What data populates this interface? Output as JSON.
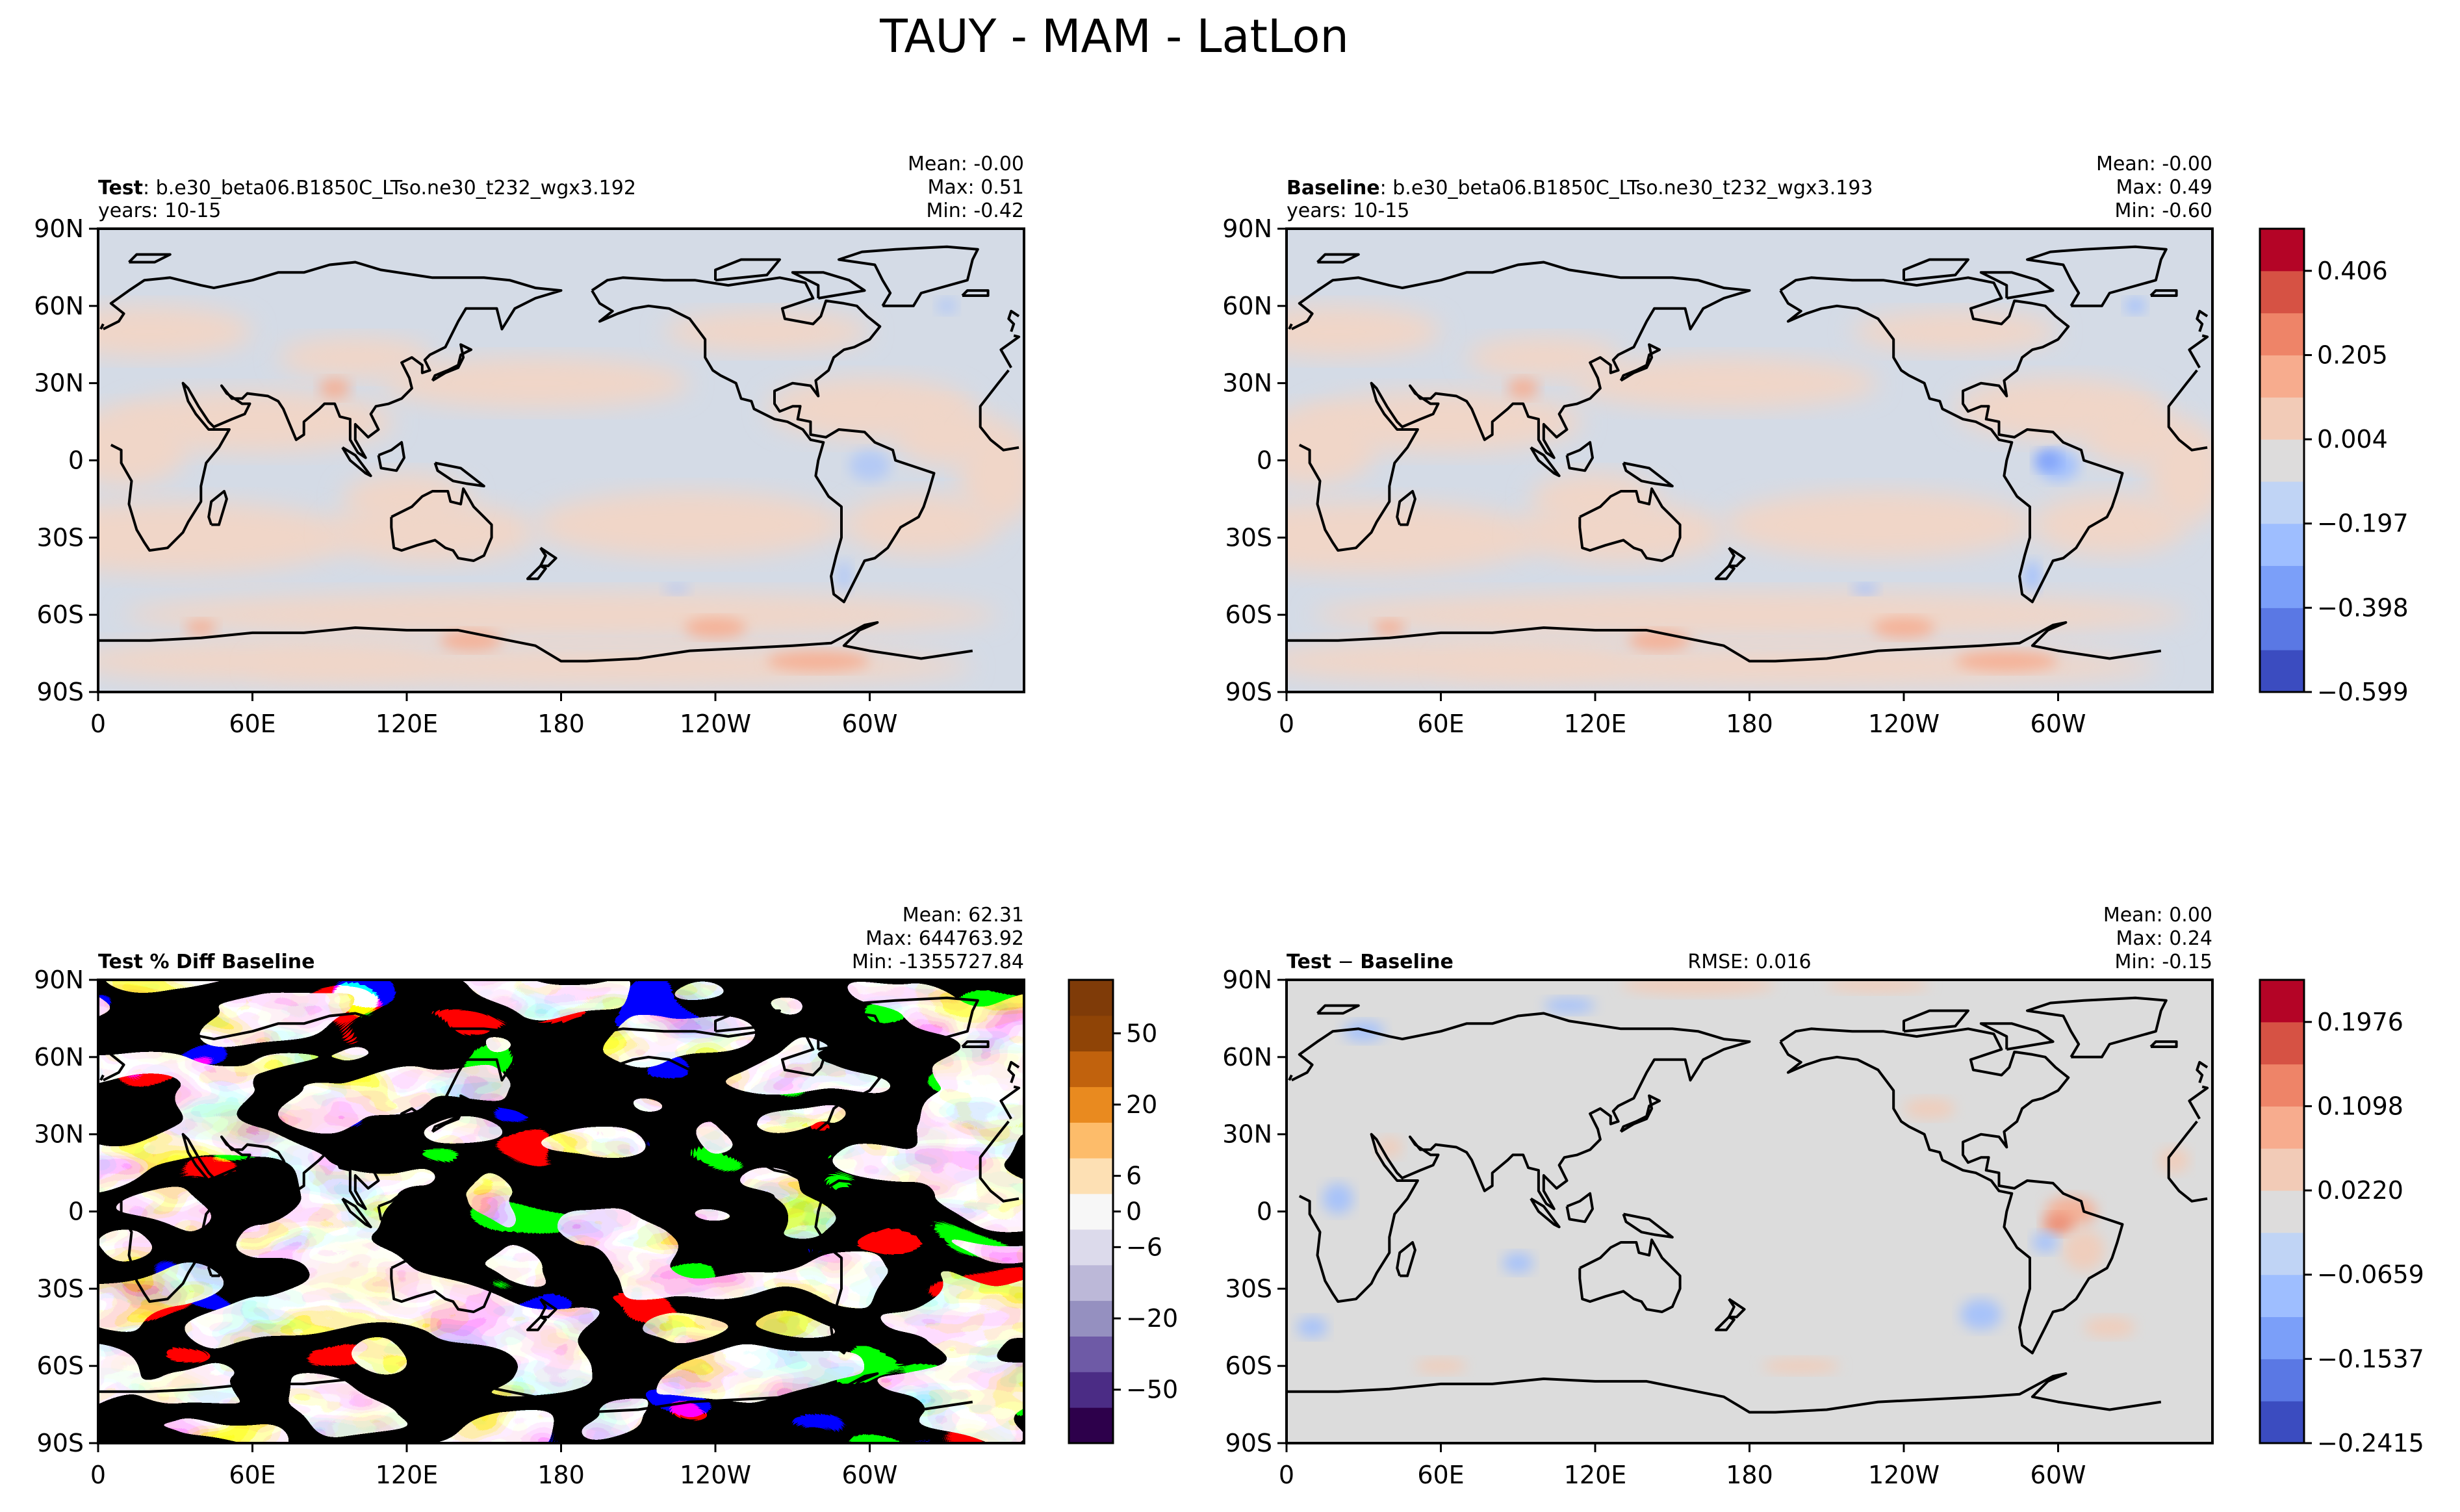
{
  "figure": {
    "title": "TAUY - MAM - LatLon"
  },
  "colors": {
    "land_outline": "#000000",
    "coolwarm": [
      "#3b4cc0",
      "#5a78e4",
      "#7b9ff9",
      "#9ebeff",
      "#c0d4f5",
      "#dddcdc",
      "#f2cbb7",
      "#f7ac8e",
      "#ee8468",
      "#d65244",
      "#b40426"
    ],
    "puor": [
      "#2d004b",
      "#4b2c85",
      "#6e5aa6",
      "#9590c0",
      "#bcb8d8",
      "#dcdaeb",
      "#f7f7f7",
      "#fde0b4",
      "#fdbc6a",
      "#e98a1f",
      "#c1620d",
      "#8f4406",
      "#7f3b08"
    ]
  },
  "chart_data": [
    {
      "type": "heatmap",
      "panel": "test",
      "title_bold": "Test",
      "title_rest": ": b.e30_beta06.B1850C_LTso.ne30_t232_wgx3.192",
      "subtitle": "years: 10-15",
      "stats": [
        "Mean: -0.00",
        "Max:  0.51",
        "Min: -0.42"
      ],
      "x_ticks": [
        "0",
        "60E",
        "120E",
        "180",
        "120W",
        "60W"
      ],
      "y_ticks": [
        "90N",
        "60N",
        "30N",
        "0",
        "30S",
        "60S",
        "90S"
      ],
      "xlim": [
        0,
        360
      ],
      "ylim": [
        -90,
        90
      ],
      "dominant_values": {
        "ocean_tropics": -0.03,
        "ocean_subtropics": 0.03,
        "land": 0.02
      },
      "extrema": {
        "max": 0.51,
        "min": -0.42
      }
    },
    {
      "type": "heatmap",
      "panel": "baseline",
      "title_bold": "Baseline",
      "title_rest": ": b.e30_beta06.B1850C_LTso.ne30_t232_wgx3.193",
      "subtitle": "years: 10-15",
      "stats": [
        "Mean: -0.00",
        "Max:  0.49",
        "Min: -0.60"
      ],
      "x_ticks": [
        "0",
        "60E",
        "120E",
        "180",
        "120W",
        "60W"
      ],
      "y_ticks": [
        "90N",
        "60N",
        "30N",
        "0",
        "30S",
        "60S",
        "90S"
      ],
      "xlim": [
        0,
        360
      ],
      "ylim": [
        -90,
        90
      ],
      "colorbar": {
        "ticks": [
          "0.406",
          "0.205",
          "0.004",
          "−0.197",
          "−0.398",
          "−0.599"
        ],
        "range": [
          -0.599,
          0.507
        ]
      },
      "extrema": {
        "max": 0.49,
        "min": -0.6
      }
    },
    {
      "type": "heatmap",
      "panel": "pct_diff",
      "title_bold": "Test % Diff Baseline",
      "stats": [
        "Mean: 62.31",
        "Max: 644763.92",
        "Min: -1355727.84"
      ],
      "x_ticks": [
        "0",
        "60E",
        "120E",
        "180",
        "120W",
        "60W"
      ],
      "y_ticks": [
        "90N",
        "60N",
        "30N",
        "0",
        "30S",
        "60S",
        "90S"
      ],
      "xlim": [
        0,
        360
      ],
      "ylim": [
        -90,
        90
      ],
      "colorbar": {
        "ticks": [
          "50",
          "20",
          "6",
          "0",
          "−6",
          "−20",
          "−50"
        ],
        "levels": [
          -100,
          -50,
          -40,
          -20,
          -10,
          -6,
          -2,
          2,
          6,
          10,
          20,
          40,
          50,
          100
        ]
      }
    },
    {
      "type": "heatmap",
      "panel": "diff",
      "title_bold": "Test",
      "title_op": " − ",
      "title_bold2": "Baseline",
      "rmse": "RMSE: 0.016",
      "stats": [
        "Mean:  0.00",
        "Max:  0.24",
        "Min: -0.15"
      ],
      "x_ticks": [
        "0",
        "60E",
        "120E",
        "180",
        "120W",
        "60W"
      ],
      "y_ticks": [
        "90N",
        "60N",
        "30N",
        "0",
        "30S",
        "60S",
        "90S"
      ],
      "xlim": [
        0,
        360
      ],
      "ylim": [
        -90,
        90
      ],
      "colorbar": {
        "ticks": [
          "0.1976",
          "0.1098",
          "0.0220",
          "−0.0659",
          "−0.1537",
          "−0.2415"
        ],
        "range": [
          -0.2415,
          0.24
        ]
      },
      "extrema": {
        "max": 0.24,
        "min": -0.15
      }
    }
  ]
}
